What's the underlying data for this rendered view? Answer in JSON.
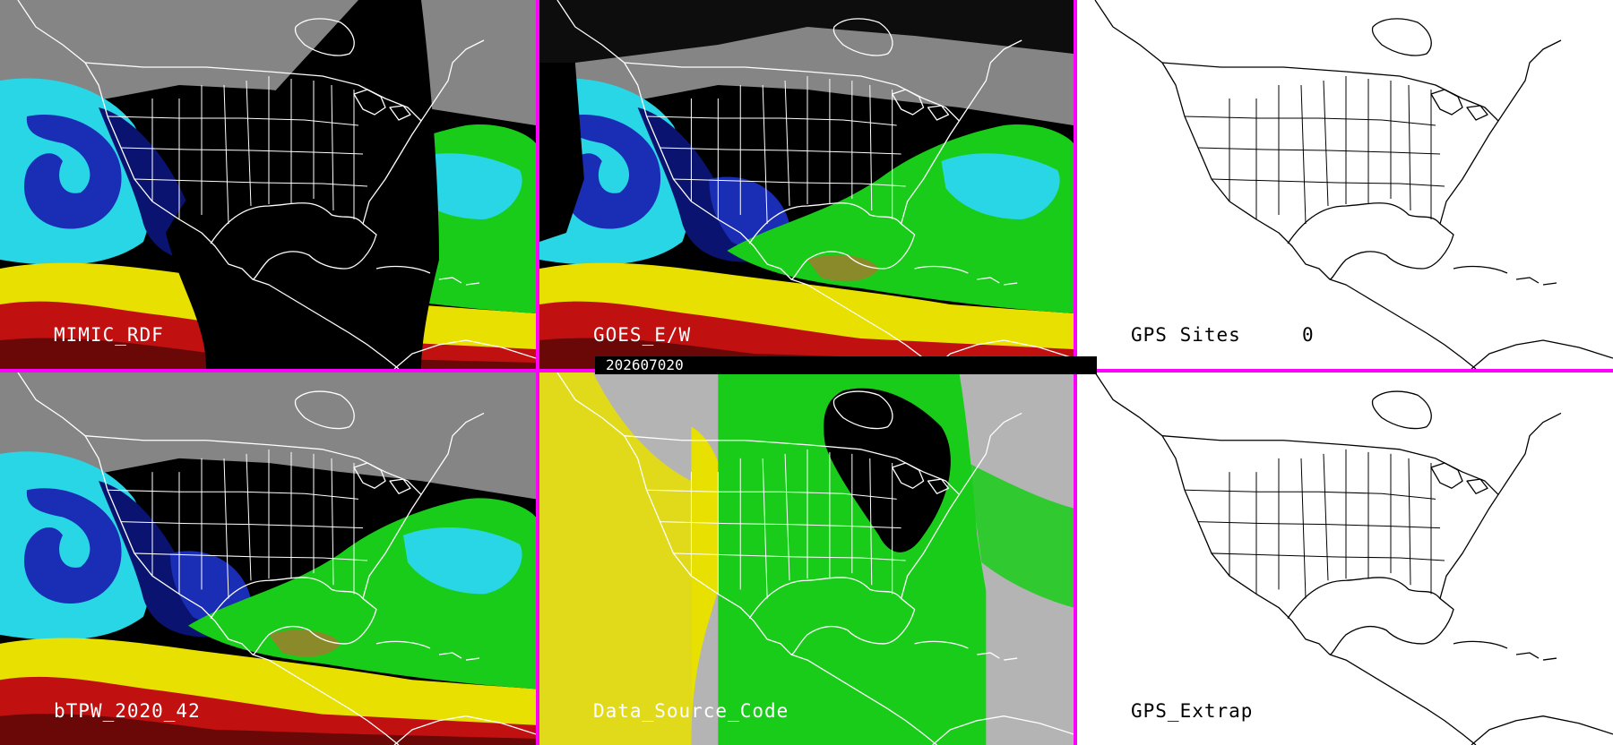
{
  "colors": {
    "divider": "#ff00ff",
    "map_lines_dark_bg": "#ffffff",
    "map_lines_light_bg": "#000000",
    "palette": {
      "gray": "#8c8c8c",
      "cyan": "#29d6e6",
      "blue": "#1a2db5",
      "navy": "#0a1470",
      "green": "#19cc19",
      "olive": "#8a8a2a",
      "yellow": "#e8e000",
      "red": "#c01010",
      "darkred": "#6a0808",
      "black": "#000000",
      "lightgray": "#b4b4b4"
    }
  },
  "panels": [
    {
      "label": "MIMIC_RDF",
      "style": "tpw_swath"
    },
    {
      "label": "GOES_E/W",
      "style": "tpw_goes"
    },
    {
      "label": "GPS Sites     0",
      "style": "outline"
    },
    {
      "label": "bTPW_2020_42",
      "style": "tpw_full"
    },
    {
      "label": "Data_Source_Code",
      "style": "source_code"
    },
    {
      "label": "GPS_Extrap",
      "style": "outline"
    }
  ],
  "timestamp": "202607020"
}
